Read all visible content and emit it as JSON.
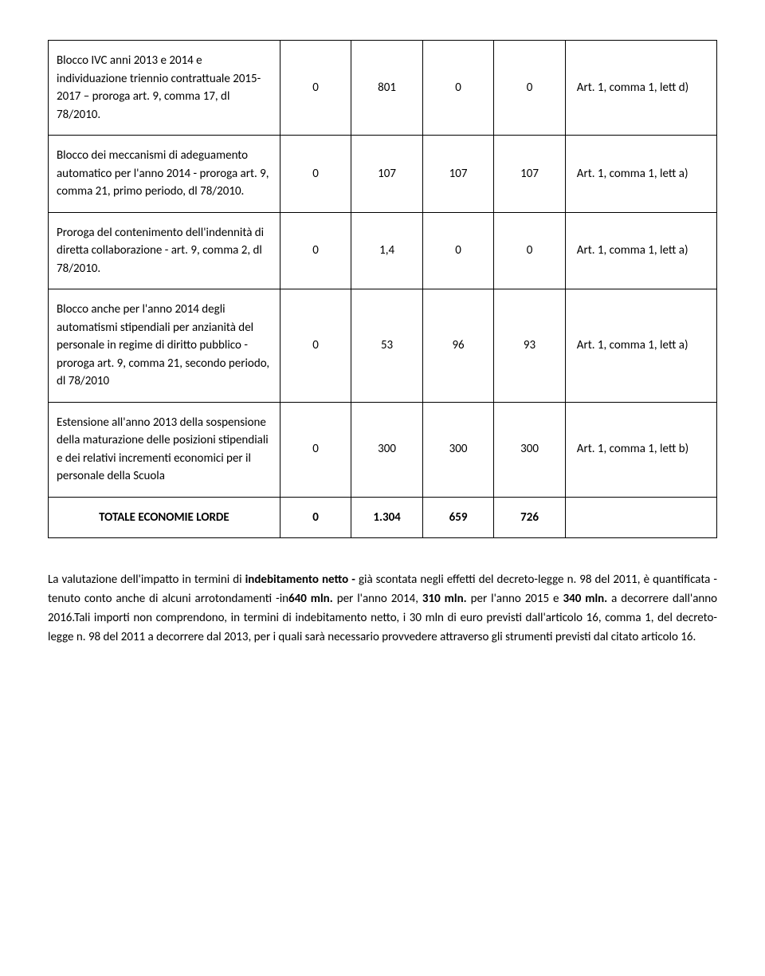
{
  "table": {
    "rows": [
      {
        "desc": "Blocco IVC anni 2013 e 2014 e individuazione triennio contrattuale 2015-2017 – proroga art. 9, comma 17, dl 78/2010.",
        "c1": "0",
        "c2": "801",
        "c3": "0",
        "c4": "0",
        "ref": "Art. 1, comma 1, lett d)"
      },
      {
        "desc": "Blocco dei meccanismi di adeguamento automatico per l'anno 2014 - proroga art. 9, comma 21, primo periodo, dl 78/2010.",
        "c1": "0",
        "c2": "107",
        "c3": "107",
        "c4": "107",
        "ref": "Art. 1, comma 1, lett a)"
      },
      {
        "desc": "Proroga del contenimento dell'indennità di diretta collaborazione - art. 9, comma 2, dl 78/2010.",
        "c1": "0",
        "c2": "1,4",
        "c3": "0",
        "c4": "0",
        "ref": "Art. 1, comma 1, lett a)"
      },
      {
        "desc": "Blocco anche per l'anno 2014 degli automatismi stipendiali per anzianità del personale in regime di diritto pubblico - proroga art. 9, comma 21, secondo periodo, dl 78/2010",
        "c1": "0",
        "c2": "53",
        "c3": "96",
        "c4": "93",
        "ref": "Art. 1, comma 1, lett a)"
      },
      {
        "desc": "Estensione all'anno 2013 della sospensione della maturazione delle posizioni stipendiali e dei relativi incrementi economici per il personale della Scuola",
        "c1": "0",
        "c2": "300",
        "c3": "300",
        "c4": "300",
        "ref": "Art. 1, comma 1, lett b)"
      }
    ],
    "total": {
      "label": "TOTALE ECONOMIE LORDE",
      "c1": "0",
      "c2": "1.304",
      "c3": "659",
      "c4": "726",
      "ref": ""
    }
  },
  "paragraph": {
    "p1a": "La valutazione dell'impatto in termini di ",
    "p1b": "indebitamento netto -",
    "p1c": " già scontata negli effetti del decreto-legge n. 98 del 2011, è quantificata - tenuto conto anche di alcuni arrotondamenti -in",
    "p1d": "640 mln.",
    "p1e": " per l'anno 2014, ",
    "p1f": "310 mln.",
    "p1g": " per l'anno 2015 e ",
    "p1h": "340 mln.",
    "p1i": " a decorrere dall'anno 2016.Tali importi non comprendono, in termini di indebitamento netto, i 30 mln di euro previsti dall'articolo 16, comma 1, del decreto-legge n. 98 del 2011 a decorrere dal 2013, per i quali sarà necessario provvedere attraverso gli strumenti previsti dal citato articolo 16."
  }
}
